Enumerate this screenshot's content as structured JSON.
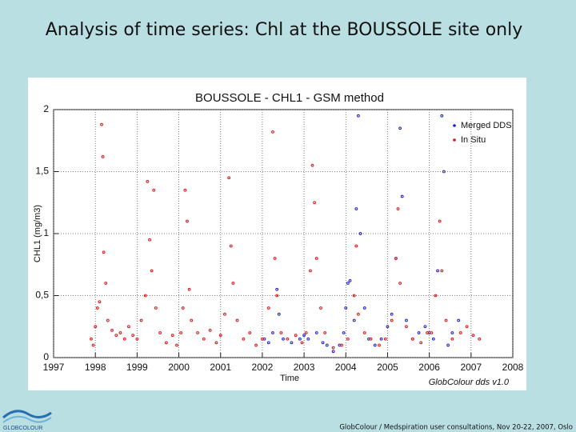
{
  "slide_title": "Analysis of time series: Chl at the BOUSSOLE site only",
  "footer": "GlobColour / Medspiration user consultations, Nov 20-22, 2007, Oslo",
  "logo_text": "GLOBCOLOUR",
  "chart_data": {
    "type": "scatter",
    "title": "BOUSSOLE - CHL1 - GSM method",
    "x_label": "Time",
    "y_label": "CHL1 (mg/m3)",
    "annotation": "GlobColour dds v1.0",
    "xlim": [
      1997,
      2008
    ],
    "xticks": [
      1997,
      1998,
      1999,
      2000,
      2001,
      2002,
      2003,
      2004,
      2005,
      2006,
      2007,
      2008
    ],
    "ylim": [
      0,
      2
    ],
    "yticks": [
      0,
      {
        "value": 0.5,
        "label": "0,5"
      },
      1,
      {
        "value": 1.5,
        "label": "1,5"
      },
      2
    ],
    "grid": true,
    "legend": "top-right",
    "series": [
      {
        "name": "Merged DDS",
        "color": "#1a1ad0",
        "x": [
          2002.05,
          2002.15,
          2002.25,
          2002.35,
          2002.4,
          2002.5,
          2002.7,
          2002.9,
          2003.0,
          2003.1,
          2003.3,
          2003.45,
          2003.55,
          2003.7,
          2003.85,
          2003.95,
          2004.0,
          2004.05,
          2004.1,
          2004.2,
          2004.25,
          2004.3,
          2004.35,
          2004.45,
          2004.55,
          2004.7,
          2004.85,
          2005.0,
          2005.1,
          2005.2,
          2005.3,
          2005.35,
          2005.45,
          2005.6,
          2005.75,
          2005.9,
          2006.0,
          2006.1,
          2006.2,
          2006.3,
          2006.35,
          2006.45,
          2006.55,
          2006.7
        ],
        "values": [
          0.15,
          0.12,
          0.2,
          0.55,
          0.35,
          0.15,
          0.12,
          0.15,
          0.18,
          0.15,
          0.2,
          0.12,
          0.1,
          0.05,
          0.1,
          0.2,
          0.4,
          0.6,
          0.62,
          0.3,
          1.2,
          1.95,
          1.0,
          0.4,
          0.15,
          0.1,
          0.15,
          0.25,
          0.35,
          0.8,
          1.85,
          1.3,
          0.3,
          0.15,
          0.2,
          0.25,
          0.2,
          0.15,
          0.7,
          1.95,
          1.5,
          0.1,
          0.2,
          0.3
        ]
      },
      {
        "name": "In Situ",
        "color": "#e01010",
        "x": [
          1997.9,
          1997.95,
          1998.0,
          1998.05,
          1998.1,
          1998.15,
          1998.18,
          1998.2,
          1998.25,
          1998.3,
          1998.4,
          1998.5,
          1998.6,
          1998.7,
          1998.8,
          1998.9,
          1999.0,
          1999.1,
          1999.2,
          1999.25,
          1999.3,
          1999.35,
          1999.4,
          1999.45,
          1999.55,
          1999.7,
          1999.85,
          1999.95,
          2000.05,
          2000.1,
          2000.15,
          2000.2,
          2000.25,
          2000.3,
          2000.45,
          2000.6,
          2000.75,
          2000.9,
          2001.0,
          2001.1,
          2001.2,
          2001.25,
          2001.3,
          2001.4,
          2001.55,
          2001.7,
          2001.85,
          2002.0,
          2002.15,
          2002.25,
          2002.3,
          2002.35,
          2002.45,
          2002.6,
          2002.8,
          2002.95,
          2003.05,
          2003.15,
          2003.2,
          2003.25,
          2003.3,
          2003.4,
          2003.5,
          2003.7,
          2003.9,
          2004.05,
          2004.2,
          2004.25,
          2004.3,
          2004.45,
          2004.6,
          2004.8,
          2004.95,
          2005.1,
          2005.2,
          2005.25,
          2005.3,
          2005.45,
          2005.6,
          2005.8,
          2005.95,
          2006.05,
          2006.15,
          2006.25,
          2006.3,
          2006.4,
          2006.55,
          2006.75,
          2006.9,
          2007.05,
          2007.2
        ],
        "values": [
          0.15,
          0.1,
          0.25,
          0.4,
          0.45,
          1.88,
          1.62,
          0.85,
          0.6,
          0.3,
          0.22,
          0.18,
          0.2,
          0.15,
          0.25,
          0.18,
          0.15,
          0.3,
          0.5,
          1.42,
          0.95,
          0.7,
          1.35,
          0.4,
          0.2,
          0.12,
          0.18,
          0.1,
          0.2,
          0.4,
          1.35,
          1.1,
          0.55,
          0.3,
          0.2,
          0.15,
          0.22,
          0.12,
          0.18,
          0.35,
          1.45,
          0.9,
          0.6,
          0.3,
          0.15,
          0.2,
          0.1,
          0.15,
          0.4,
          1.82,
          0.8,
          0.5,
          0.2,
          0.15,
          0.18,
          0.12,
          0.2,
          0.7,
          1.55,
          1.25,
          0.8,
          0.4,
          0.2,
          0.08,
          0.1,
          0.15,
          0.5,
          0.9,
          0.35,
          0.2,
          0.15,
          0.1,
          0.15,
          0.3,
          0.8,
          1.2,
          0.6,
          0.25,
          0.15,
          0.12,
          0.2,
          0.2,
          0.5,
          1.1,
          0.7,
          0.3,
          0.15,
          0.2,
          0.25,
          0.18,
          0.15
        ]
      }
    ]
  }
}
